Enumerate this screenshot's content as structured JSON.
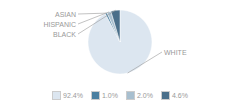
{
  "chart_data": {
    "type": "pie",
    "categories": [
      "WHITE",
      "ASIAN",
      "HISPANIC",
      "BLACK"
    ],
    "values": [
      92.4,
      1.0,
      2.0,
      4.6
    ],
    "value_labels": [
      "92.4%",
      "1.0%",
      "2.0%",
      "4.6%"
    ],
    "colors": [
      "#dce6f0",
      "#4a7fa0",
      "#a8bfcf",
      "#4a6f8a"
    ]
  }
}
